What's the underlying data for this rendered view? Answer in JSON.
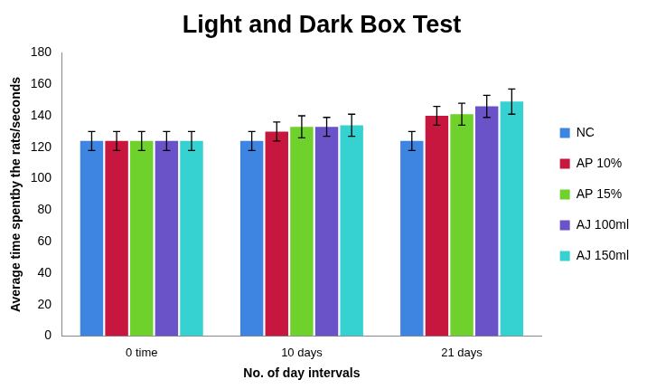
{
  "chart_data": {
    "type": "bar",
    "title": "Light and Dark Box Test",
    "x_label": "No. of day intervals",
    "y_label": "Average time spentby the rats/seconds",
    "categories": [
      "0 time",
      "10 days",
      "21 days"
    ],
    "series": [
      {
        "name": "NC",
        "color": "#3d85e0",
        "values": [
          124,
          124,
          124
        ],
        "errors": [
          6,
          6,
          6
        ]
      },
      {
        "name": "AP 10%",
        "color": "#c8173f",
        "values": [
          124,
          130,
          140
        ],
        "errors": [
          6,
          6,
          6
        ]
      },
      {
        "name": "AP 15%",
        "color": "#6fd12c",
        "values": [
          124,
          133,
          141
        ],
        "errors": [
          6,
          7,
          7
        ]
      },
      {
        "name": "AJ 100ml",
        "color": "#6a52c9",
        "values": [
          124,
          133,
          146
        ],
        "errors": [
          6,
          6,
          7
        ]
      },
      {
        "name": "AJ 150ml",
        "color": "#36d1d1",
        "values": [
          124,
          134,
          149
        ],
        "errors": [
          6,
          7,
          8
        ]
      }
    ],
    "ylim": [
      0,
      180
    ],
    "yticks": [
      0,
      20,
      40,
      60,
      80,
      100,
      120,
      140,
      160,
      180
    ],
    "grid": false,
    "legend": "right"
  }
}
